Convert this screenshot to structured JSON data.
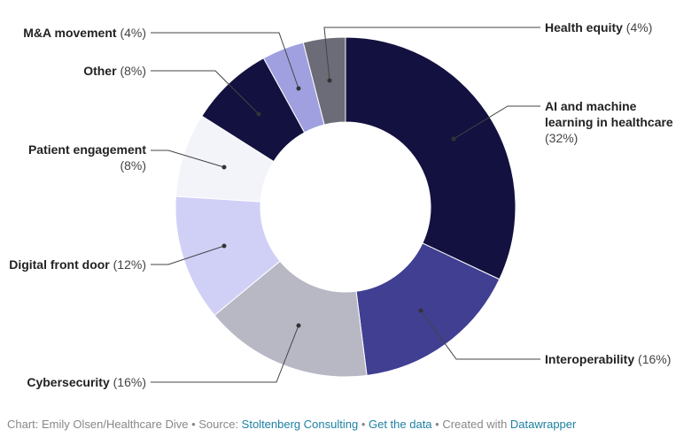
{
  "chart_data": {
    "type": "pie",
    "donut": true,
    "categories": [
      "AI and machine learning in healthcare",
      "Interoperability",
      "Cybersecurity",
      "Digital front door",
      "Patient engagement",
      "Other",
      "M&A movement",
      "Health equity"
    ],
    "values": [
      32,
      16,
      16,
      12,
      8,
      8,
      4,
      4
    ],
    "value_labels": [
      "(32%)",
      "(16%)",
      "(16%)",
      "(12%)",
      "(8%)",
      "(8%)",
      "(4%)",
      "(4%)"
    ],
    "colors": [
      "#12113f",
      "#403f92",
      "#b8b8c5",
      "#d0d0f7",
      "#f3f3fa",
      "#12113f",
      "#a0a0e0",
      "#6c6c78"
    ]
  },
  "labels": {
    "ai_line1": "AI and machine",
    "ai_line2": "learning in healthcare",
    "ai_pct": "(32%)",
    "interop": "Interoperability",
    "interop_pct": "(16%)",
    "cyber": "Cybersecurity",
    "cyber_pct": "(16%)",
    "digital": "Digital front door",
    "digital_pct": "(12%)",
    "patient": "Patient engagement",
    "patient_pct": "(8%)",
    "other": "Other",
    "other_pct": "(8%)",
    "ma": "M&A movement",
    "ma_pct": "(4%)",
    "health": "Health equity",
    "health_pct": "(4%)"
  },
  "footer": {
    "chart_credit": "Chart: Emily Olsen/Healthcare Dive",
    "sep": " • ",
    "source_label": "Source: ",
    "source_link": "Stoltenberg Consulting",
    "get_data": "Get the data",
    "created_with": "Created with ",
    "datawrapper": "Datawrapper"
  }
}
